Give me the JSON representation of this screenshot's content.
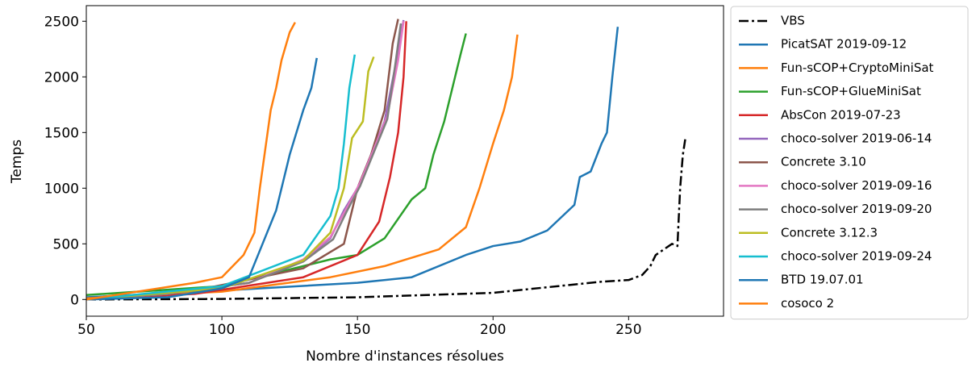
{
  "chart_data": {
    "type": "line",
    "x_label": "Nombre d'instances résolues",
    "y_label": "Temps",
    "xlim": [
      50,
      285
    ],
    "ylim": [
      -150,
      2640
    ],
    "xticks": [
      50,
      100,
      150,
      200,
      250
    ],
    "yticks": [
      0,
      500,
      1000,
      1500,
      2000,
      2500
    ],
    "legend": "outside right",
    "series": [
      {
        "name": "VBS",
        "color": "#000000",
        "style": "dashdot",
        "x": [
          50,
          100,
          150,
          200,
          220,
          240,
          250,
          255,
          258,
          260,
          263,
          266,
          268,
          269,
          270,
          271
        ],
        "values": [
          0,
          5,
          20,
          60,
          110,
          160,
          175,
          220,
          300,
          400,
          450,
          500,
          480,
          1000,
          1300,
          1460
        ]
      },
      {
        "name": "PicatSAT 2019-09-12",
        "color": "#1f77b4",
        "x": [
          50,
          100,
          150,
          170,
          190,
          200,
          210,
          220,
          230,
          232,
          236,
          240,
          242,
          244,
          246
        ],
        "values": [
          20,
          80,
          150,
          200,
          400,
          480,
          520,
          620,
          850,
          1100,
          1150,
          1400,
          1500,
          2000,
          2450
        ]
      },
      {
        "name": "Fun-sCOP+CryptoMiniSat",
        "color": "#ff7f0e",
        "x": [
          50,
          100,
          140,
          160,
          180,
          190,
          195,
          200,
          204,
          207,
          209
        ],
        "values": [
          10,
          70,
          200,
          300,
          450,
          650,
          1000,
          1400,
          1700,
          2000,
          2380
        ]
      },
      {
        "name": "Fun-sCOP+GlueMiniSat",
        "color": "#2ca02c",
        "x": [
          50,
          100,
          140,
          150,
          160,
          170,
          175,
          178,
          182,
          185,
          188,
          190
        ],
        "values": [
          40,
          120,
          360,
          400,
          550,
          900,
          1000,
          1300,
          1600,
          1900,
          2200,
          2390
        ]
      },
      {
        "name": "AbsCon 2019-07-23",
        "color": "#d62728",
        "x": [
          50,
          90,
          130,
          150,
          158,
          162,
          165,
          167,
          168
        ],
        "values": [
          0,
          50,
          200,
          400,
          700,
          1100,
          1500,
          2000,
          2500
        ]
      },
      {
        "name": "choco-solver 2019-06-14",
        "color": "#9467bd",
        "x": [
          50,
          80,
          110,
          130,
          140,
          145,
          150,
          155,
          160,
          164,
          167
        ],
        "values": [
          0,
          50,
          150,
          350,
          550,
          800,
          1000,
          1300,
          1600,
          2100,
          2510
        ]
      },
      {
        "name": "Concrete 3.10",
        "color": "#8c564b",
        "x": [
          50,
          90,
          130,
          145,
          150,
          155,
          160,
          163,
          165
        ],
        "values": [
          0,
          80,
          280,
          500,
          1000,
          1300,
          1700,
          2300,
          2520
        ]
      },
      {
        "name": "choco-solver 2019-09-16",
        "color": "#e377c2",
        "x": [
          50,
          80,
          110,
          130,
          140,
          146,
          151,
          156,
          161,
          165,
          167
        ],
        "values": [
          0,
          50,
          150,
          360,
          560,
          820,
          1050,
          1350,
          1650,
          2150,
          2500
        ]
      },
      {
        "name": "choco-solver 2019-09-20",
        "color": "#7f7f7f",
        "x": [
          50,
          80,
          110,
          130,
          141,
          146,
          151,
          156,
          161,
          164,
          166
        ],
        "values": [
          0,
          50,
          150,
          340,
          540,
          790,
          1020,
          1320,
          1620,
          2120,
          2480
        ]
      },
      {
        "name": "Concrete 3.12.3",
        "color": "#bcbd22",
        "x": [
          50,
          100,
          130,
          140,
          145,
          148,
          152,
          154,
          156
        ],
        "values": [
          0,
          100,
          350,
          600,
          1000,
          1450,
          1600,
          2050,
          2180
        ]
      },
      {
        "name": "choco-solver 2019-09-24",
        "color": "#17becf",
        "x": [
          50,
          100,
          130,
          140,
          143,
          145,
          147,
          149
        ],
        "values": [
          0,
          120,
          400,
          750,
          1000,
          1400,
          1900,
          2200
        ]
      },
      {
        "name": "BTD 19.07.01",
        "color": "#1f77b4",
        "x": [
          50,
          80,
          100,
          110,
          115,
          120,
          125,
          130,
          133,
          135
        ],
        "values": [
          0,
          20,
          100,
          200,
          500,
          800,
          1300,
          1700,
          1900,
          2170
        ]
      },
      {
        "name": "cosoco 2",
        "color": "#ff7f0e",
        "x": [
          50,
          90,
          100,
          108,
          112,
          114,
          118,
          120,
          122,
          125,
          127
        ],
        "values": [
          0,
          150,
          200,
          400,
          600,
          1000,
          1700,
          1900,
          2150,
          2400,
          2490
        ]
      }
    ]
  }
}
